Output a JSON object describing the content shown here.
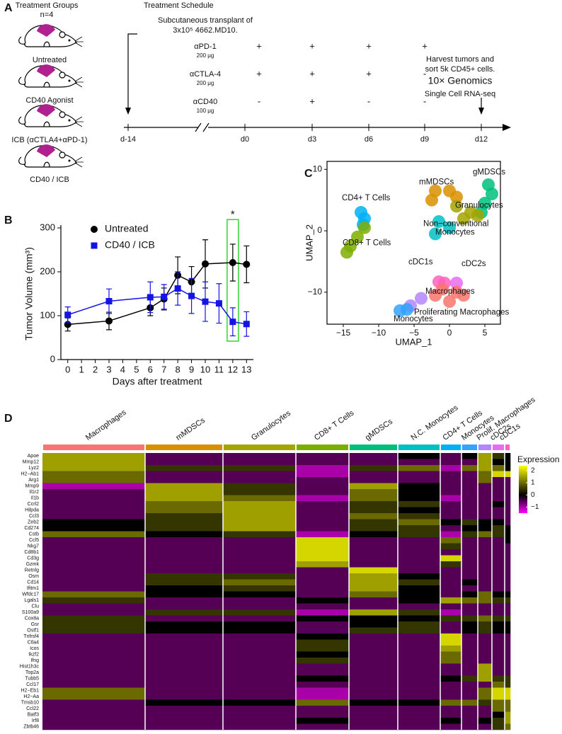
{
  "panels": [
    "A",
    "B",
    "C",
    "D"
  ],
  "schedule": {
    "groups_title": "Treatment Groups",
    "n": "n=4",
    "groups": [
      "Untreated",
      "CD40 Agonist",
      "ICB (αCTLA4+αPD-1)",
      "CD40 / ICB"
    ],
    "title": "Treatment Schedule",
    "transplant": [
      "Subcutaneous transplant of",
      "3x10⁵ 4662.MD10."
    ],
    "drugs": [
      {
        "name": "αPD-1",
        "dose": "200 μg",
        "marks": [
          "+",
          "+",
          "+",
          "+"
        ]
      },
      {
        "name": "αCTLA-4",
        "dose": "200 μg",
        "marks": [
          "+",
          "+",
          "+",
          "-"
        ]
      },
      {
        "name": "αCD40",
        "dose": "100 μg",
        "marks": [
          "-",
          "+",
          "-",
          "-"
        ]
      }
    ],
    "harvest": [
      "Harvest tumors and",
      "sort 5k CD45+ cells.",
      "10× Genomics",
      "Single Cell RNA-seq"
    ],
    "timepoints": [
      "d-14",
      "d0",
      "d3",
      "d6",
      "d9",
      "d12"
    ]
  },
  "chart_data": [
    {
      "type": "line",
      "x_label": "Days after treatment",
      "y_label": "Tumor Volume (mm³)",
      "xlim": [
        -0.5,
        13.5
      ],
      "xticks": [
        0,
        1,
        2,
        3,
        4,
        5,
        6,
        7,
        8,
        9,
        10,
        11,
        12,
        13
      ],
      "ylim": [
        0,
        300
      ],
      "yticks": [
        0,
        100,
        200,
        300
      ],
      "series": [
        {
          "name": "Untreated",
          "color": "#000000",
          "marker": "circle",
          "x": [
            0,
            3,
            6,
            7,
            8,
            9,
            10,
            12,
            13
          ],
          "values": [
            80,
            88,
            118,
            138,
            192,
            177,
            218,
            221,
            217
          ],
          "errors": [
            15,
            20,
            18,
            25,
            42,
            35,
            55,
            42,
            42
          ]
        },
        {
          "name": "CD40 / ICB",
          "color": "#1414e6",
          "marker": "square",
          "x": [
            0,
            3,
            6,
            7,
            8,
            9,
            10,
            11,
            12,
            13
          ],
          "values": [
            102,
            133,
            142,
            143,
            162,
            145,
            132,
            128,
            86,
            81
          ],
          "errors": [
            18,
            28,
            35,
            28,
            38,
            40,
            45,
            45,
            32,
            28
          ]
        }
      ],
      "annotations": [
        {
          "text": "*",
          "x": 12,
          "y": 330
        }
      ],
      "highlight": {
        "x": 12,
        "ylim": [
          42,
          319
        ],
        "color": "#33d633"
      }
    },
    {
      "type": "scatter",
      "x_label": "UMAP_1",
      "y_label": "UMAP_2",
      "xlim": [
        -17.3,
        7.2
      ],
      "xticks": [
        {
          "value": -15,
          "label": "−15"
        },
        {
          "value": -10,
          "label": "−10"
        },
        {
          "value": -5,
          "label": "−5"
        },
        0,
        5
      ],
      "ylim": [
        -15.2,
        11.3
      ],
      "yticks": [
        10,
        0,
        {
          "value": -10,
          "label": "−10"
        }
      ],
      "series": [
        {
          "color": "#00b0f6",
          "x": [
            -12.5,
            -12,
            -12.2
          ],
          "values": [
            3,
            2,
            1
          ]
        },
        {
          "color": "#7cae00",
          "x": [
            -12,
            -13,
            -14,
            -14.5
          ],
          "values": [
            0.5,
            -1,
            -2.5,
            -3.5
          ]
        },
        {
          "color": "#00bf7d",
          "x": [
            5.5,
            6,
            5,
            4.5
          ],
          "values": [
            7.5,
            6,
            4.5,
            3
          ]
        },
        {
          "color": "#d89000",
          "x": [
            -2,
            0,
            -2.5,
            1
          ],
          "values": [
            6.5,
            6.5,
            5,
            5.5
          ]
        },
        {
          "color": "#a3a500",
          "x": [
            1,
            3,
            2,
            4
          ],
          "values": [
            4,
            3,
            2,
            2.5
          ]
        },
        {
          "color": "#00bfc4",
          "x": [
            -1.5,
            0,
            -2
          ],
          "values": [
            1.5,
            0.5,
            -0.5
          ]
        },
        {
          "color": "#ff62bc",
          "x": [
            -1.5,
            -0.7
          ],
          "values": [
            -8.3,
            -8.5
          ]
        },
        {
          "color": "#e76bf3",
          "x": [
            1
          ],
          "values": [
            -8.5
          ]
        },
        {
          "color": "#f8766d",
          "x": [
            -1,
            1,
            0,
            2,
            -2
          ],
          "values": [
            -9.5,
            -10,
            -11.5,
            -10.5,
            -10.5
          ]
        },
        {
          "color": "#b385ff",
          "x": [
            -4,
            -5.5
          ],
          "values": [
            -11,
            -12.2
          ]
        },
        {
          "color": "#35a2ff",
          "x": [
            -7,
            -6
          ],
          "values": [
            -13,
            -12.8
          ]
        }
      ],
      "annotations": [
        {
          "text": "gMDSCs",
          "x": 3.3,
          "y": 9.5
        },
        {
          "text": "mMDSCs",
          "x": -4.3,
          "y": 7.9
        },
        {
          "text": "CD4+ T Cells",
          "x": -15.2,
          "y": 5.3
        },
        {
          "text": "Granulocytes",
          "x": 0.8,
          "y": 4.1
        },
        {
          "text": "CD8+ T Cells",
          "x": -15.1,
          "y": -2
        },
        {
          "text": "Non−conventional",
          "x": -3.7,
          "y": 1.1
        },
        {
          "text": "Monocytes",
          "x": -2,
          "y": -0.3
        },
        {
          "text": "cDC1s",
          "x": -5.8,
          "y": -5.1
        },
        {
          "text": "cDC2s",
          "x": 1.7,
          "y": -5.4
        },
        {
          "text": "Macrophages",
          "x": -3.4,
          "y": -9.9
        },
        {
          "text": "Proliferating Macrophages",
          "x": -5,
          "y": -13.3
        },
        {
          "text": "Monocytes",
          "x": -7.9,
          "y": -14.4
        }
      ]
    },
    {
      "type": "heatmap",
      "legend_title": "Expression",
      "categories": [
        "Macrophages",
        "mMDSCs",
        "Granulocytes",
        "CD8+ T Cells",
        "gMDSCs",
        "N.C. Monocytes",
        "CD4+ T Cells",
        "Monocytes",
        "Prolif. Macrophages",
        "cDC2s",
        "cDC1s"
      ],
      "category_colors": [
        "#f8766d",
        "#d89000",
        "#a3a500",
        "#7cae00",
        "#00bf7d",
        "#00bfc4",
        "#00b0f6",
        "#35a2ff",
        "#b385ff",
        "#e76bf3",
        "#ff62bc"
      ],
      "rows": [
        "Apoe",
        "Mmp12",
        "Lyz2",
        "H2−Ab1",
        "Arg1",
        "Mmp9",
        "Il1r2",
        "Il1b",
        "Ccrl2",
        "Hilpda",
        "Ccl3",
        "Zeb2",
        "Cd274",
        "Cstb",
        "Ccl5",
        "Nkg7",
        "Cd8b1",
        "Cd3g",
        "Gzmk",
        "Retnlg",
        "Osm",
        "Cd14",
        "Ifitm1",
        "Wfdc17",
        "Lgals1",
        "Clu",
        "S100a9",
        "Cox8a",
        "Gsr",
        "Ostf1",
        "Tnfrsf4",
        "Ctla4",
        "Icos",
        "Ikzf2",
        "Ifng",
        "Hist1h3c",
        "Top2a",
        "Tubb5",
        "Ccl17",
        "H2−Eb1",
        "H2−Aa",
        "Tmsb10",
        "Ccl22",
        "Batf3",
        "Irf8",
        "Zbtb46"
      ],
      "values": [
        [
          1.5,
          -0.5,
          -0.5,
          -0.5,
          -0.5,
          0,
          -0.5,
          0,
          1.5,
          0.5,
          0
        ],
        [
          1.5,
          -0.5,
          -0.5,
          -0.5,
          -0.5,
          -0.5,
          -0.5,
          -0.5,
          1.5,
          0,
          0
        ],
        [
          1.5,
          0.5,
          0.5,
          -1,
          0.5,
          1,
          -1,
          1,
          1.5,
          1,
          0
        ],
        [
          1,
          -0.5,
          -0.5,
          -1,
          -0.5,
          -0.5,
          -0.5,
          -0.5,
          1,
          2,
          2
        ],
        [
          1,
          -0.5,
          -0.5,
          -0.5,
          -0.5,
          -0.5,
          -0.5,
          -0.5,
          1,
          -0.5,
          -0.5
        ],
        [
          -1,
          1.5,
          0.5,
          -0.5,
          1.5,
          0,
          -0.5,
          -0.5,
          -0.5,
          -0.5,
          -0.5
        ],
        [
          -0.5,
          1.5,
          0.5,
          -0.5,
          1,
          0,
          -0.5,
          -0.5,
          -0.5,
          -0.5,
          -0.5
        ],
        [
          -0.5,
          1.5,
          1,
          -1,
          1,
          0,
          -1,
          -0.5,
          -0.5,
          -0.5,
          -0.5
        ],
        [
          -0.5,
          1,
          1.5,
          -0.5,
          0.5,
          0.5,
          -0.5,
          -0.5,
          -0.5,
          0,
          -0.5
        ],
        [
          -0.5,
          1,
          1.5,
          -0.5,
          0.5,
          0,
          -0.5,
          -0.5,
          -0.5,
          -0.5,
          -0.5
        ],
        [
          -0.5,
          0.5,
          1.5,
          -0.5,
          1,
          0.5,
          -0.5,
          -0.5,
          -0.5,
          -0.5,
          -0.5
        ],
        [
          0,
          0.5,
          1.5,
          -0.5,
          0.5,
          1,
          0,
          0.5,
          0,
          0,
          -0.5
        ],
        [
          0,
          0.5,
          1.5,
          -0.5,
          0.5,
          0.5,
          -0.5,
          0,
          0,
          0.5,
          0
        ],
        [
          1,
          0,
          0.5,
          -1,
          0,
          0.5,
          -1,
          0.5,
          1,
          0.5,
          0
        ],
        [
          -0.5,
          -0.5,
          -0.5,
          2,
          -0.5,
          -0.5,
          1,
          -0.5,
          -0.5,
          -0.5,
          0
        ],
        [
          -0.5,
          -0.5,
          -0.5,
          2,
          -0.5,
          -0.5,
          0.5,
          -0.5,
          -0.5,
          -0.5,
          -0.5
        ],
        [
          -0.5,
          -0.5,
          -0.5,
          2,
          -0.5,
          -0.5,
          -0.5,
          -0.5,
          -0.5,
          -0.5,
          -0.5
        ],
        [
          -0.5,
          -0.5,
          -0.5,
          2,
          -0.5,
          -0.5,
          2,
          -0.5,
          -0.5,
          -0.5,
          -0.5
        ],
        [
          -0.5,
          -0.5,
          -0.5,
          1.5,
          -0.5,
          -0.5,
          0.5,
          -0.5,
          -0.5,
          -0.5,
          -0.5
        ],
        [
          -0.5,
          -0.5,
          -0.5,
          -0.5,
          2,
          -0.5,
          -0.5,
          -0.5,
          -0.5,
          -0.5,
          -0.5
        ],
        [
          -0.5,
          0.5,
          0.5,
          -0.5,
          1.5,
          0,
          -0.5,
          -0.5,
          -0.5,
          -0.5,
          -0.5
        ],
        [
          -0.5,
          0.5,
          1,
          -0.5,
          1.5,
          0.5,
          -0.5,
          0,
          -0.5,
          -0.5,
          -0.5
        ],
        [
          -0.5,
          0,
          0.5,
          -0.5,
          1.5,
          0,
          -0.5,
          -0.5,
          -0.5,
          -0.5,
          -0.5
        ],
        [
          1,
          0,
          0,
          -0.5,
          1,
          0,
          -0.5,
          0,
          1,
          0,
          0
        ],
        [
          0.5,
          -0.5,
          -0.5,
          0,
          -0.5,
          0,
          1.5,
          1,
          1,
          0.5,
          0.5
        ],
        [
          -0.5,
          -0.5,
          -0.5,
          -0.5,
          -0.5,
          -0.5,
          -0.5,
          -0.5,
          -0.5,
          -0.5,
          -0.5
        ],
        [
          -0.5,
          0.5,
          0.5,
          -1,
          1.5,
          0.5,
          -1,
          -0.5,
          -0.5,
          -0.5,
          -0.5
        ],
        [
          0.5,
          -0.5,
          -0.5,
          0,
          0,
          0,
          0.5,
          0.5,
          1,
          0.5,
          0.5
        ],
        [
          0.5,
          0,
          0,
          -0.5,
          0,
          0.5,
          -0.5,
          0,
          0.5,
          0,
          0
        ],
        [
          0.5,
          0,
          0,
          -0.5,
          0.5,
          0.5,
          -0.5,
          0,
          0.5,
          0,
          0
        ],
        [
          -0.5,
          -0.5,
          -0.5,
          0,
          -0.5,
          -0.5,
          2,
          -0.5,
          -0.5,
          -0.5,
          -0.5
        ],
        [
          -0.5,
          -0.5,
          -0.5,
          0.5,
          -0.5,
          -0.5,
          2,
          -0.5,
          -0.5,
          -0.5,
          -0.5
        ],
        [
          -0.5,
          -0.5,
          -0.5,
          0.5,
          -0.5,
          -0.5,
          1.5,
          -0.5,
          -0.5,
          -0.5,
          -0.5
        ],
        [
          -0.5,
          -0.5,
          -0.5,
          0,
          -0.5,
          -0.5,
          1,
          -0.5,
          -0.5,
          -0.5,
          -0.5
        ],
        [
          -0.5,
          -0.5,
          -0.5,
          0.5,
          -0.5,
          -0.5,
          1,
          -0.5,
          -0.5,
          -0.5,
          -0.5
        ],
        [
          -0.5,
          -0.5,
          -0.5,
          -0.5,
          -0.5,
          -0.5,
          -0.5,
          -0.5,
          1.5,
          -0.5,
          -0.5
        ],
        [
          -0.5,
          -0.5,
          -0.5,
          -0.5,
          -0.5,
          -0.5,
          -0.5,
          -0.5,
          1.5,
          -0.5,
          -0.5
        ],
        [
          -0.5,
          -0.5,
          -0.5,
          0,
          -0.5,
          -0.5,
          0,
          0.5,
          1.5,
          0.5,
          0.5
        ],
        [
          -0.5,
          -0.5,
          -0.5,
          -0.5,
          -0.5,
          -0.5,
          -0.5,
          -0.5,
          -0.5,
          1,
          0.5
        ],
        [
          1,
          -0.5,
          -0.5,
          -1,
          -0.5,
          -0.5,
          -0.5,
          -0.5,
          1,
          2,
          2
        ],
        [
          1,
          -0.5,
          -0.5,
          -1,
          -0.5,
          -0.5,
          -0.5,
          -0.5,
          1,
          2,
          2
        ],
        [
          -0.5,
          0,
          0,
          1,
          0,
          0,
          1,
          1,
          0.5,
          1,
          1
        ],
        [
          -0.5,
          -0.5,
          -0.5,
          -0.5,
          -0.5,
          -0.5,
          -0.5,
          -0.5,
          -0.5,
          1,
          1
        ],
        [
          -0.5,
          -0.5,
          -0.5,
          -0.5,
          -0.5,
          -0.5,
          -0.5,
          -0.5,
          -0.5,
          0,
          1.5
        ],
        [
          -0.5,
          -0.5,
          -0.5,
          0,
          -0.5,
          -0.5,
          0,
          -0.5,
          0,
          0.5,
          1.5
        ],
        [
          -0.5,
          -0.5,
          -0.5,
          -0.5,
          -0.5,
          -0.5,
          -0.5,
          -0.5,
          -0.5,
          0.5,
          1
        ]
      ],
      "clim": [
        -1.5,
        2.4
      ],
      "cticks": [
        2,
        1,
        0,
        {
          "value": -1,
          "label": "−1"
        }
      ],
      "colorscale": [
        "#ff00ff",
        "#000000",
        "#ffff00"
      ]
    }
  ]
}
